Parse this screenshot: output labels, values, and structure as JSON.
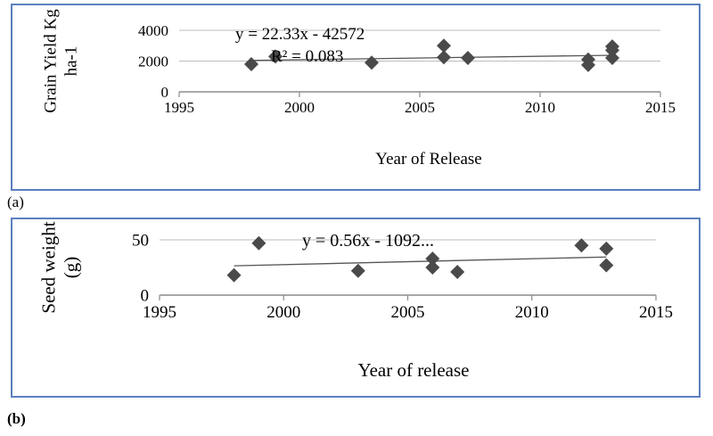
{
  "chart_data": [
    {
      "type": "scatter",
      "panel_label": "(a)",
      "ylabel_lines": [
        "Grain Yield Kg",
        "ha-1"
      ],
      "xlabel": "Year of Release",
      "xlim": [
        1995,
        2015
      ],
      "ylim": [
        0,
        4000
      ],
      "x_ticks": [
        1995,
        2000,
        2005,
        2010,
        2015
      ],
      "y_ticks": [
        0,
        2000,
        4000
      ],
      "points": [
        {
          "x": 1998,
          "y": 1800
        },
        {
          "x": 1999,
          "y": 2300
        },
        {
          "x": 2003,
          "y": 1900
        },
        {
          "x": 2006,
          "y": 3000
        },
        {
          "x": 2006,
          "y": 2250
        },
        {
          "x": 2007,
          "y": 2200
        },
        {
          "x": 2012,
          "y": 2100
        },
        {
          "x": 2012,
          "y": 1750
        },
        {
          "x": 2013,
          "y": 2950
        },
        {
          "x": 2013,
          "y": 2700
        },
        {
          "x": 2013,
          "y": 2200
        }
      ],
      "trendline": {
        "slope": 22.33,
        "intercept": -42572,
        "x_range": [
          1998,
          2013
        ]
      },
      "equation": "y = 22.33x - 42572",
      "r_squared": "R² = 0.083",
      "marker_color": "#4a4a4a"
    },
    {
      "type": "scatter",
      "panel_label": "(b)",
      "ylabel_lines": [
        "Seed weight",
        "(g)"
      ],
      "xlabel": "Year of release",
      "xlim": [
        1995,
        2015
      ],
      "ylim": [
        0,
        50
      ],
      "x_ticks": [
        1995,
        2000,
        2005,
        2010,
        2015
      ],
      "y_ticks": [
        0,
        50
      ],
      "points": [
        {
          "x": 1998,
          "y": 18
        },
        {
          "x": 1999,
          "y": 47
        },
        {
          "x": 2003,
          "y": 22
        },
        {
          "x": 2006,
          "y": 33
        },
        {
          "x": 2006,
          "y": 25
        },
        {
          "x": 2007,
          "y": 21
        },
        {
          "x": 2012,
          "y": 45
        },
        {
          "x": 2013,
          "y": 42
        },
        {
          "x": 2013,
          "y": 27
        }
      ],
      "trendline": {
        "slope": 0.56,
        "intercept": -1092,
        "y_range": [
          26.5,
          34.5
        ],
        "x_range": [
          1998,
          2013
        ]
      },
      "equation": "y = 0.56x - 1092...",
      "marker_color": "#4a4a4a"
    }
  ]
}
